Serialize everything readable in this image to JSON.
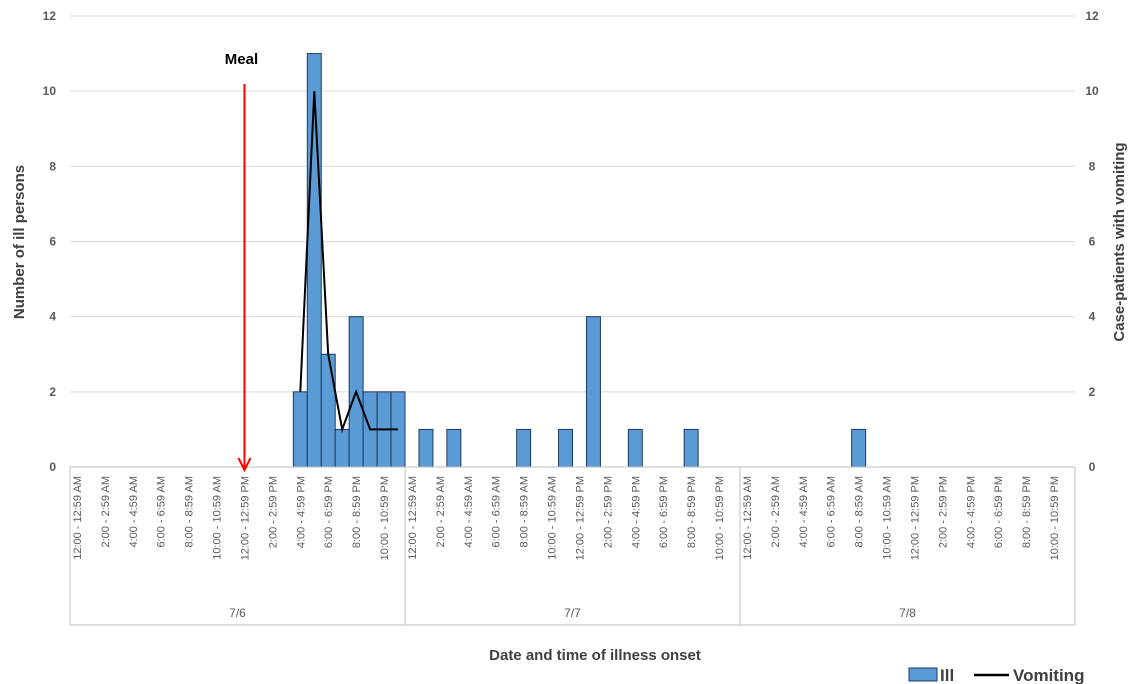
{
  "chart_data": {
    "type": "bar",
    "xlabel": "Date and time of illness onset",
    "ylabel": "Number of ill persons",
    "y2label": "Case-patients with vomiting",
    "ylim": [
      0,
      12
    ],
    "y2lim": [
      0,
      12
    ],
    "yticks": [
      0,
      2,
      4,
      6,
      8,
      10,
      12
    ],
    "y2ticks": [
      0,
      2,
      4,
      6,
      8,
      10,
      12
    ],
    "grid": true,
    "legend_position": "bottom-right",
    "interval_hours": 1,
    "categories_labels": [
      "12:00 - 12:59 AM",
      "2:00 - 2:59 AM",
      "4:00 - 4:59 AM",
      "6:00 - 6:59 AM",
      "8:00 - 8:59 AM",
      "10:00 - 10:59 AM",
      "12:00 - 12:59 PM",
      "2:00 - 2:59 PM",
      "4:00 - 4:59 PM",
      "6:00 - 6:59 PM",
      "8:00 - 8:59 PM",
      "10:00 - 10:59 PM"
    ],
    "days": [
      "7/6",
      "7/7",
      "7/8"
    ],
    "series": [
      {
        "name": "Ill",
        "type": "bar",
        "color": "#5B9BD5",
        "points": [
          {
            "day": "7/6",
            "hour": "4:00 - 4:59 PM",
            "value": 2
          },
          {
            "day": "7/6",
            "hour": "5:00 - 5:59 PM",
            "value": 11
          },
          {
            "day": "7/6",
            "hour": "6:00 - 6:59 PM",
            "value": 3
          },
          {
            "day": "7/6",
            "hour": "7:00 - 7:59 PM",
            "value": 1
          },
          {
            "day": "7/6",
            "hour": "8:00 - 8:59 PM",
            "value": 4
          },
          {
            "day": "7/6",
            "hour": "9:00 - 9:59 PM",
            "value": 2
          },
          {
            "day": "7/6",
            "hour": "10:00 - 10:59 PM",
            "value": 2
          },
          {
            "day": "7/6",
            "hour": "11:00 - 11:59 PM",
            "value": 2
          },
          {
            "day": "7/7",
            "hour": "1:00 - 1:59 AM",
            "value": 1
          },
          {
            "day": "7/7",
            "hour": "3:00 - 3:59 AM",
            "value": 1
          },
          {
            "day": "7/7",
            "hour": "8:00 - 8:59 AM",
            "value": 1
          },
          {
            "day": "7/7",
            "hour": "11:00 - 11:59 AM",
            "value": 1
          },
          {
            "day": "7/7",
            "hour": "1:00 - 1:59 PM",
            "value": 4
          },
          {
            "day": "7/7",
            "hour": "4:00 - 4:59 PM",
            "value": 1
          },
          {
            "day": "7/7",
            "hour": "8:00 - 8:59 PM",
            "value": 1
          },
          {
            "day": "7/8",
            "hour": "8:00 - 8:59 AM",
            "value": 1
          }
        ]
      },
      {
        "name": "Vomiting",
        "type": "line",
        "color": "#000000",
        "points": [
          {
            "day": "7/6",
            "hour": "4:00 - 4:59 PM",
            "value": 2
          },
          {
            "day": "7/6",
            "hour": "5:00 - 5:59 PM",
            "value": 10
          },
          {
            "day": "7/6",
            "hour": "6:00 - 6:59 PM",
            "value": 3
          },
          {
            "day": "7/6",
            "hour": "7:00 - 7:59 PM",
            "value": 1
          },
          {
            "day": "7/6",
            "hour": "8:00 - 8:59 PM",
            "value": 2
          },
          {
            "day": "7/6",
            "hour": "9:00 - 9:59 PM",
            "value": 1
          },
          {
            "day": "7/6",
            "hour": "10:00 - 10:59 PM",
            "value": 1
          },
          {
            "day": "7/6",
            "hour": "11:00 - 11:59 PM",
            "value": 1
          }
        ]
      }
    ],
    "annotations": [
      {
        "text": "Meal",
        "day": "7/6",
        "hour": "12:00 - 12:59 PM",
        "arrow_color": "#FF0000"
      }
    ]
  }
}
